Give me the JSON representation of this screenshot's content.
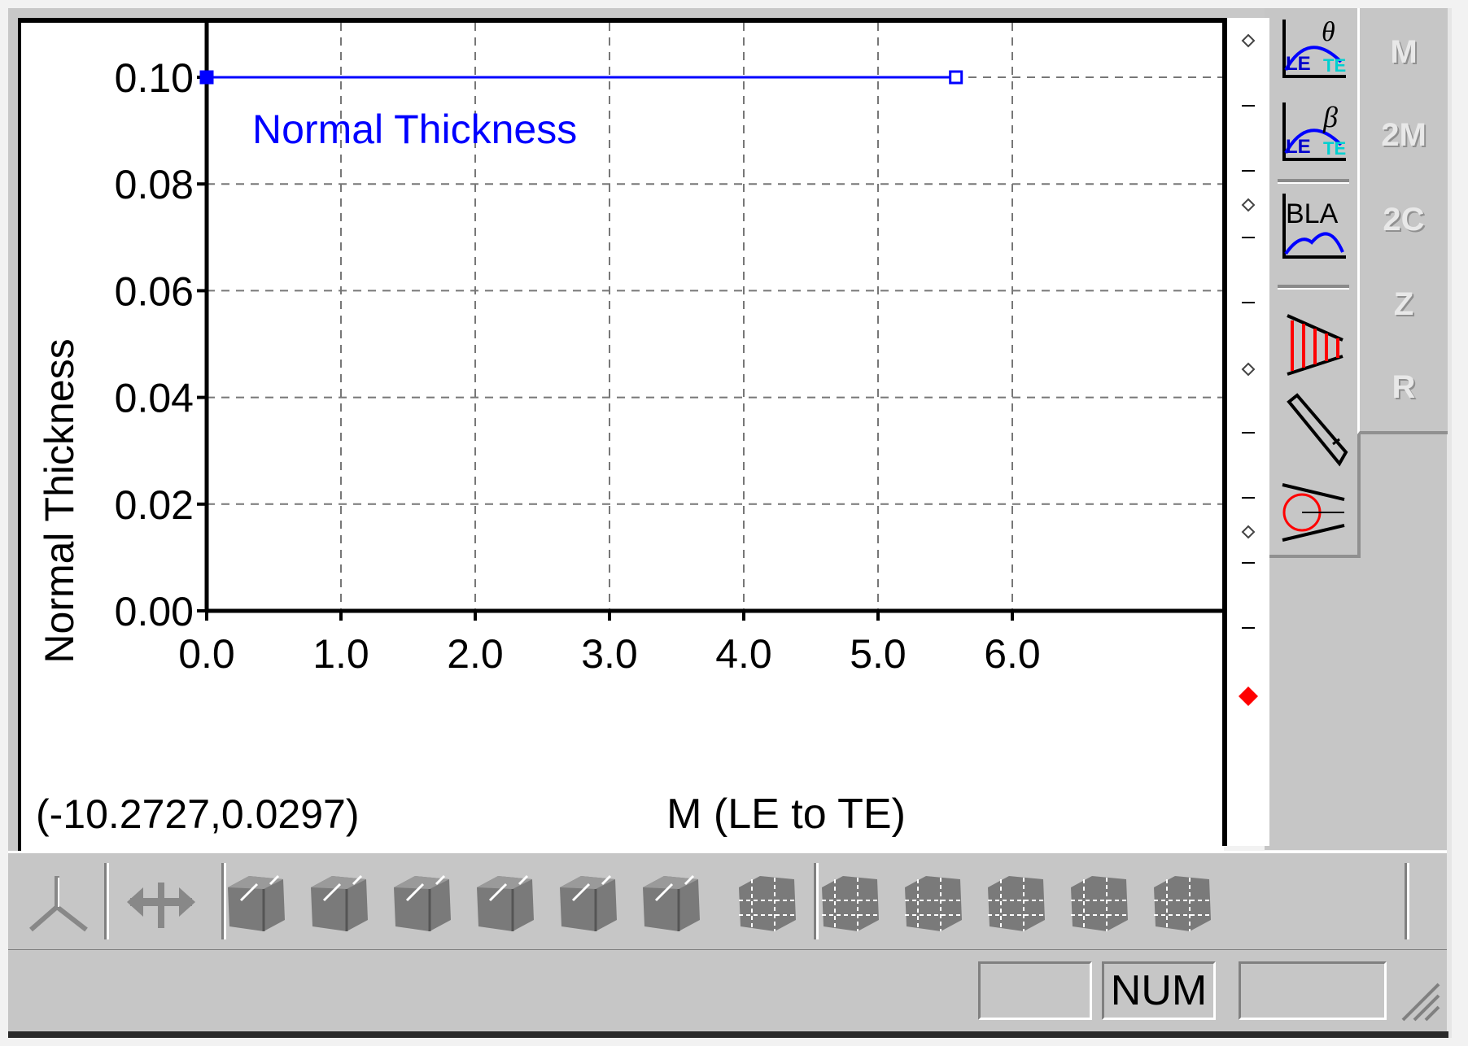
{
  "plot": {
    "legend_label": "Normal Thickness",
    "coordinate_readout": "(-10.2727,0.0297)",
    "line_color": "#0000ff",
    "handle_marker_color": "#ff0000"
  },
  "chart_data": {
    "type": "line",
    "title": "",
    "xlabel": "M (LE to TE)",
    "ylabel": "Normal Thickness",
    "xlim": [
      0.0,
      6.35
    ],
    "ylim": [
      0.0,
      0.1
    ],
    "x_ticks": [
      "0.0",
      "1.0",
      "2.0",
      "3.0",
      "4.0",
      "5.0",
      "6.0"
    ],
    "y_ticks": [
      "0.00",
      "0.02",
      "0.04",
      "0.06",
      "0.08",
      "0.10"
    ],
    "grid": true,
    "series": [
      {
        "name": "Normal Thickness",
        "x": [
          0.0,
          5.58
        ],
        "y": [
          0.1,
          0.1
        ]
      }
    ]
  },
  "side_toolbar": {
    "icons": [
      {
        "name": "le-theta-icon",
        "text": "θ",
        "sub": "LE"
      },
      {
        "name": "le-beta-icon",
        "text": "β",
        "sub": "LE"
      },
      {
        "name": "bla-icon",
        "text": "BLA"
      },
      {
        "name": "thickness-bars-icon"
      },
      {
        "name": "pencil-icon"
      },
      {
        "name": "circle-cone-icon"
      }
    ]
  },
  "zoom_toolbar": {
    "buttons": [
      "M",
      "2M",
      "2C",
      "Z",
      "R"
    ]
  },
  "bottom_toolbar": {
    "icons": [
      "axes-icon",
      "pan-horizontal-icon",
      "cube-view-1-icon",
      "cube-view-2-icon",
      "cube-view-3-icon",
      "cube-view-4-icon",
      "cube-view-5-icon",
      "cube-view-6-icon",
      "mesh-view-1-icon",
      "mesh-view-2-icon",
      "mesh-view-3-icon",
      "mesh-view-4-icon",
      "mesh-view-5-icon",
      "mesh-view-6-icon"
    ]
  },
  "status_bar": {
    "panes": [
      "",
      "NUM",
      ""
    ]
  }
}
